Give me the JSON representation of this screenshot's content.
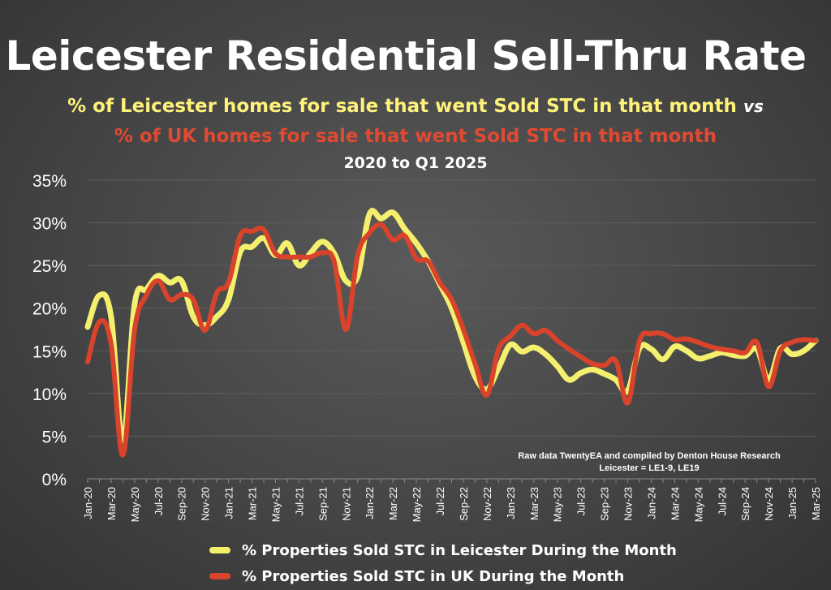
{
  "title": "Leicester Residential Sell-Thru Rate",
  "subtitle_line1": "% of Leicester homes for sale that went Sold STC in that month",
  "subtitle_vs": "vs",
  "subtitle_line2": "% of UK homes for sale that went Sold STC in that month",
  "period": "2020 to Q1 2025",
  "source_line1": "Raw data TwentyEA and compiled by Denton House Research",
  "source_line2": "Leicester = LE1-9, LE19",
  "colors": {
    "leicester": "#f4f06e",
    "uk": "#d9432b",
    "background": "#474747",
    "grid": "#5e5e5e"
  },
  "chart_data": {
    "type": "line",
    "ylim": [
      0,
      35
    ],
    "yticks": [
      "0%",
      "5%",
      "10%",
      "15%",
      "20%",
      "25%",
      "30%",
      "35%"
    ],
    "x": [
      "Jan-20",
      "Feb-20",
      "Mar-20",
      "Apr-20",
      "May-20",
      "Jun-20",
      "Jul-20",
      "Aug-20",
      "Sep-20",
      "Oct-20",
      "Nov-20",
      "Dec-20",
      "Jan-21",
      "Feb-21",
      "Mar-21",
      "Apr-21",
      "May-21",
      "Jun-21",
      "Jul-21",
      "Aug-21",
      "Sep-21",
      "Oct-21",
      "Nov-21",
      "Dec-21",
      "Jan-22",
      "Feb-22",
      "Mar-22",
      "Apr-22",
      "May-22",
      "Jun-22",
      "Jul-22",
      "Aug-22",
      "Sep-22",
      "Oct-22",
      "Nov-22",
      "Dec-22",
      "Jan-23",
      "Feb-23",
      "Mar-23",
      "Apr-23",
      "May-23",
      "Jun-23",
      "Jul-23",
      "Aug-23",
      "Sep-23",
      "Oct-23",
      "Nov-23",
      "Dec-23",
      "Jan-24",
      "Feb-24",
      "Mar-24",
      "Apr-24",
      "May-24",
      "Jun-24",
      "Jul-24",
      "Aug-24",
      "Sep-24",
      "Oct-24",
      "Nov-24",
      "Dec-24",
      "Jan-25",
      "Feb-25",
      "Mar-25"
    ],
    "xtick_labels": [
      "Jan-20",
      "Mar-20",
      "May-20",
      "Jul-20",
      "Sep-20",
      "Nov-20",
      "Jan-21",
      "Mar-21",
      "May-21",
      "Jul-21",
      "Sep-21",
      "Nov-21",
      "Jan-22",
      "Mar-22",
      "May-22",
      "Jul-22",
      "Sep-22",
      "Nov-22",
      "Jan-23",
      "Mar-23",
      "May-23",
      "Jul-23",
      "Sep-23",
      "Nov-23",
      "Jan-24",
      "Mar-24",
      "May-24",
      "Jul-24",
      "Sep-24",
      "Nov-24",
      "Jan-25",
      "Mar-25"
    ],
    "series": [
      {
        "name": "% Properties Sold STC in Leicester During the Month",
        "values": [
          17.8,
          21.5,
          19.0,
          4.5,
          20.5,
          22.2,
          23.8,
          23.0,
          23.2,
          19.0,
          18.0,
          19.0,
          21.0,
          26.6,
          27.2,
          28.2,
          26.2,
          27.6,
          25.0,
          26.5,
          27.8,
          26.4,
          23.2,
          23.8,
          31.0,
          30.5,
          31.2,
          29.3,
          27.6,
          25.5,
          22.8,
          20.0,
          16.0,
          12.0,
          10.5,
          13.0,
          15.7,
          14.9,
          15.4,
          14.6,
          13.2,
          11.6,
          12.4,
          12.8,
          12.3,
          11.6,
          10.3,
          15.3,
          15.2,
          14.0,
          15.5,
          15.0,
          14.1,
          14.4,
          14.8,
          14.5,
          14.4,
          15.2,
          11.6,
          15.3,
          14.6,
          15.0,
          16.2
        ]
      },
      {
        "name": "% Properties Sold STC in UK During the Month",
        "values": [
          13.7,
          18.4,
          15.8,
          2.8,
          17.5,
          21.5,
          23.2,
          21.0,
          21.6,
          21.0,
          17.4,
          21.8,
          23.0,
          28.5,
          29.0,
          29.2,
          26.4,
          26.0,
          26.0,
          26.0,
          26.5,
          25.5,
          17.5,
          26.2,
          28.8,
          29.8,
          28.0,
          28.5,
          25.8,
          25.5,
          23.0,
          21.0,
          17.5,
          13.5,
          9.8,
          15.2,
          16.7,
          18.0,
          17.0,
          17.4,
          16.2,
          15.2,
          14.3,
          13.5,
          13.3,
          13.8,
          8.9,
          16.2,
          17.0,
          17.0,
          16.3,
          16.4,
          16.0,
          15.5,
          15.2,
          15.0,
          14.8,
          16.0,
          10.8,
          15.0,
          16.0,
          16.3,
          16.2
        ]
      }
    ]
  }
}
